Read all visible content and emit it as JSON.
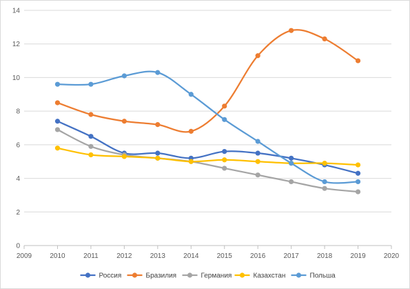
{
  "chart_data": {
    "type": "line",
    "smooth": true,
    "grid": "horizontal",
    "legend_position": "bottom",
    "xlim": [
      2009,
      2020
    ],
    "ylim": [
      0,
      14
    ],
    "x_ticks": [
      2009,
      2010,
      2011,
      2012,
      2013,
      2014,
      2015,
      2016,
      2017,
      2018,
      2019,
      2020
    ],
    "y_ticks": [
      0,
      2,
      4,
      6,
      8,
      10,
      12,
      14
    ],
    "x": [
      2010,
      2011,
      2012,
      2013,
      2014,
      2015,
      2016,
      2017,
      2018,
      2019
    ],
    "series": [
      {
        "name": "Россия",
        "color": "#4472c4",
        "values": [
          7.4,
          6.5,
          5.5,
          5.5,
          5.2,
          5.6,
          5.5,
          5.2,
          4.8,
          4.3
        ]
      },
      {
        "name": "Бразилия",
        "color": "#ed7d31",
        "values": [
          8.5,
          7.8,
          7.4,
          7.2,
          6.8,
          8.3,
          11.3,
          12.8,
          12.3,
          11.0
        ]
      },
      {
        "name": "Германия",
        "color": "#a5a5a5",
        "values": [
          6.9,
          5.9,
          5.4,
          5.2,
          5.0,
          4.6,
          4.2,
          3.8,
          3.4,
          3.2
        ]
      },
      {
        "name": "Казахстан",
        "color": "#ffc000",
        "values": [
          5.8,
          5.4,
          5.3,
          5.2,
          5.0,
          5.1,
          5.0,
          4.9,
          4.9,
          4.8
        ]
      },
      {
        "name": "Польша",
        "color": "#5b9bd5",
        "values": [
          9.6,
          9.6,
          10.1,
          10.3,
          9.0,
          7.5,
          6.2,
          4.9,
          3.8,
          3.8
        ]
      }
    ]
  }
}
